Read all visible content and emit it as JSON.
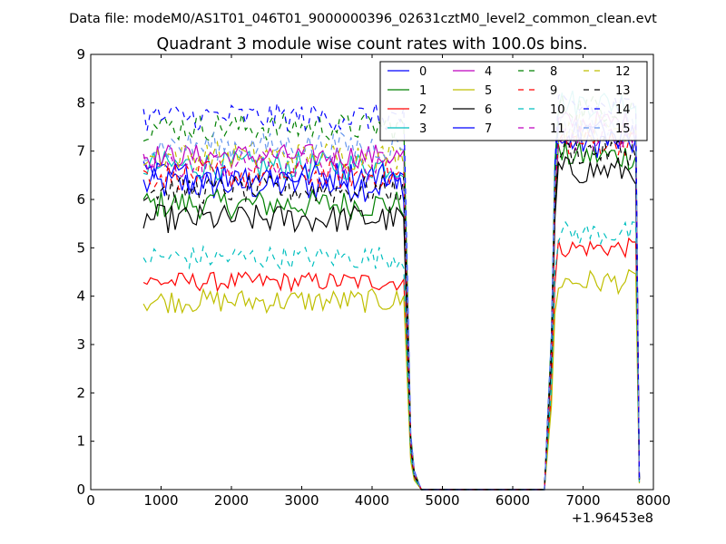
{
  "chart_data": {
    "type": "line",
    "suptitle": "Data file: modeM0/AS1T01_046T01_9000000396_02631cztM0_level2_common_clean.evt",
    "title": "Quadrant 3 module wise count rates with 100.0s bins.",
    "xlabel": "",
    "ylabel": "",
    "x_offset_label": "+1.96453e8",
    "xlim": [
      0,
      8000
    ],
    "ylim": [
      0,
      9
    ],
    "x_ticks": [
      0,
      1000,
      2000,
      3000,
      4000,
      5000,
      6000,
      7000,
      8000
    ],
    "y_ticks": [
      0,
      1,
      2,
      3,
      4,
      5,
      6,
      7,
      8,
      9
    ],
    "grid": false,
    "legend_position": "top-right",
    "legend_columns": 4,
    "segments": [
      {
        "start": 750,
        "end": 4450,
        "step": 50
      },
      {
        "start": 6500,
        "end": 7800,
        "step": 50
      }
    ],
    "series": [
      {
        "name": "0",
        "color": "#0000ff",
        "dash": "solid",
        "level1": 6.3,
        "level2": 7.2,
        "spread": 0.35
      },
      {
        "name": "1",
        "color": "#008000",
        "dash": "solid",
        "level1": 5.9,
        "level2": 6.9,
        "spread": 0.3
      },
      {
        "name": "2",
        "color": "#ff0000",
        "dash": "solid",
        "level1": 4.3,
        "level2": 5.0,
        "spread": 0.2
      },
      {
        "name": "3",
        "color": "#00bfbf",
        "dash": "solid",
        "level1": 6.7,
        "level2": 8.0,
        "spread": 0.3
      },
      {
        "name": "4",
        "color": "#bf00bf",
        "dash": "solid",
        "level1": 6.9,
        "level2": 7.6,
        "spread": 0.25
      },
      {
        "name": "5",
        "color": "#bfbf00",
        "dash": "solid",
        "level1": 3.9,
        "level2": 4.3,
        "spread": 0.25
      },
      {
        "name": "6",
        "color": "#000000",
        "dash": "solid",
        "level1": 5.6,
        "level2": 6.6,
        "spread": 0.3
      },
      {
        "name": "7",
        "color": "#0000ff",
        "dash": "solid",
        "level1": 6.5,
        "level2": 7.4,
        "spread": 0.3
      },
      {
        "name": "8",
        "color": "#008000",
        "dash": "dashed",
        "level1": 7.5,
        "level2": 7.9,
        "spread": 0.3
      },
      {
        "name": "9",
        "color": "#ff0000",
        "dash": "dashed",
        "level1": 6.5,
        "level2": 7.2,
        "spread": 0.3
      },
      {
        "name": "10",
        "color": "#00bfbf",
        "dash": "dashed",
        "level1": 4.8,
        "level2": 5.3,
        "spread": 0.25
      },
      {
        "name": "11",
        "color": "#bf00bf",
        "dash": "dashed",
        "level1": 6.7,
        "level2": 7.3,
        "spread": 0.3
      },
      {
        "name": "12",
        "color": "#bfbf00",
        "dash": "dashed",
        "level1": 6.9,
        "level2": 7.5,
        "spread": 0.3
      },
      {
        "name": "13",
        "color": "#000000",
        "dash": "dashed",
        "level1": 6.2,
        "level2": 7.0,
        "spread": 0.3
      },
      {
        "name": "14",
        "color": "#0000ff",
        "dash": "dashed",
        "level1": 7.7,
        "level2": 7.9,
        "spread": 0.3
      },
      {
        "name": "15",
        "color": "#6495ed",
        "dash": "dashed",
        "level1": 7.1,
        "level2": 7.6,
        "spread": 0.3
      }
    ]
  }
}
